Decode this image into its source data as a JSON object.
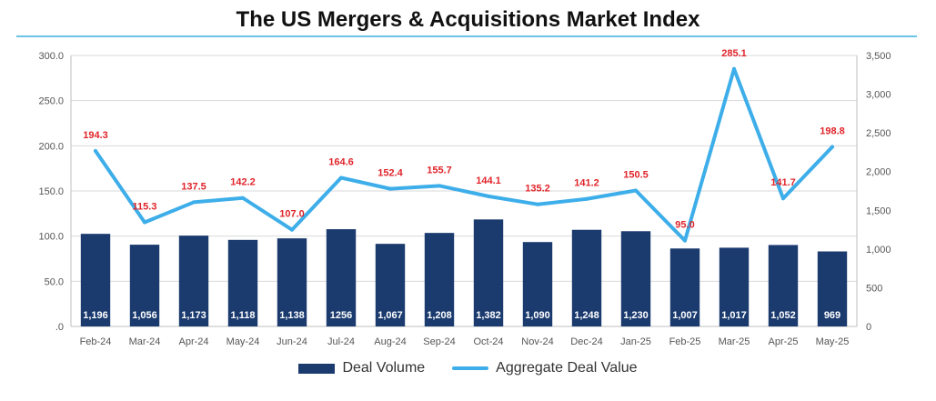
{
  "chart_data": {
    "type": "bar+line",
    "title": "The US Mergers & Acquisitions Market Index",
    "categories": [
      "Feb-24",
      "Mar-24",
      "Apr-24",
      "May-24",
      "Jun-24",
      "Jul-24",
      "Aug-24",
      "Sep-24",
      "Oct-24",
      "Nov-24",
      "Dec-24",
      "Jan-25",
      "Feb-25",
      "Mar-25",
      "Apr-25",
      "May-25"
    ],
    "series": [
      {
        "name": "Deal Volume",
        "type": "bar",
        "axis": "right",
        "color": "#1b3b6f",
        "values": [
          1196,
          1056,
          1173,
          1118,
          1138,
          1256,
          1067,
          1208,
          1382,
          1090,
          1248,
          1230,
          1007,
          1017,
          1052,
          969
        ],
        "labels": [
          "1,196",
          "1,056",
          "1,173",
          "1,118",
          "1,138",
          "1256",
          "1,067",
          "1,208",
          "1,382",
          "1,090",
          "1,248",
          "1,230",
          "1,007",
          "1,017",
          "1,052",
          "969"
        ]
      },
      {
        "name": "Aggregate Deal Value",
        "type": "line",
        "axis": "left",
        "color": "#3daee9",
        "values": [
          194.3,
          115.3,
          137.5,
          142.2,
          107.0,
          164.6,
          152.4,
          155.7,
          144.1,
          135.2,
          141.2,
          150.5,
          95.0,
          285.1,
          141.7,
          198.8
        ],
        "labels": [
          "194.3",
          "115.3",
          "137.5",
          "142.2",
          "107.0",
          "164.6",
          "152.4",
          "155.7",
          "144.1",
          "135.2",
          "141.2",
          "150.5",
          "95.0",
          "285.1",
          "141.7",
          "198.8"
        ]
      }
    ],
    "y_left": {
      "min": 0,
      "max": 300,
      "ticks": [
        0,
        50,
        100,
        150,
        200,
        250,
        300
      ],
      "tick_labels": [
        ".0",
        "50.0",
        "100.0",
        "150.0",
        "200.0",
        "250.0",
        "300.0"
      ]
    },
    "y_right": {
      "min": 0,
      "max": 3500,
      "ticks": [
        0,
        500,
        1000,
        1500,
        2000,
        2500,
        3000,
        3500
      ],
      "tick_labels": [
        "0",
        "500",
        "1,000",
        "1,500",
        "2,000",
        "2,500",
        "3,000",
        "3,500"
      ]
    },
    "grid": true,
    "legend_position": "bottom"
  }
}
